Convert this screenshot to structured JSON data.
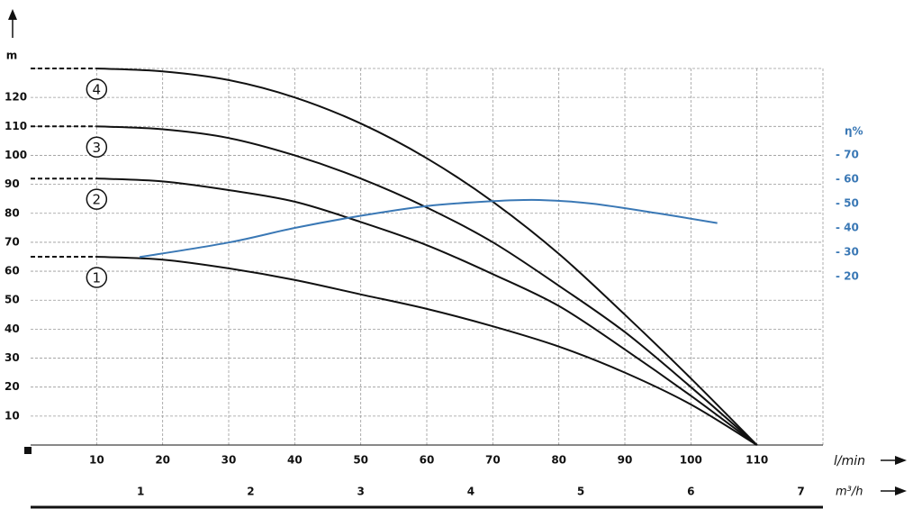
{
  "chart_data": {
    "type": "line",
    "ylabel": "m",
    "xlabel": "l/min",
    "x2label": "m³/h",
    "y2label": "η%",
    "xlim": [
      0,
      120
    ],
    "xticks": [
      10,
      20,
      30,
      40,
      50,
      60,
      70,
      80,
      90,
      100,
      110
    ],
    "x2lim": [
      0,
      7.2
    ],
    "x2ticks": [
      1,
      2,
      3,
      4,
      5,
      6,
      7
    ],
    "ylim": [
      0,
      130
    ],
    "yticks": [
      10,
      20,
      30,
      40,
      50,
      60,
      70,
      80,
      90,
      100,
      110,
      120
    ],
    "y2lim": [
      20,
      70
    ],
    "y2ticks": [
      {
        "value": 20,
        "label": "- 20"
      },
      {
        "value": 30,
        "label": "- 30"
      },
      {
        "value": 40,
        "label": "- 40"
      },
      {
        "value": 50,
        "label": "- 50"
      },
      {
        "value": 60,
        "label": "- 60"
      },
      {
        "value": 70,
        "label": "- 70"
      }
    ],
    "grid": true,
    "x": [
      0,
      10,
      20,
      30,
      40,
      50,
      60,
      70,
      80,
      90,
      100,
      110
    ],
    "series": [
      {
        "name": "1",
        "color": "#111111",
        "values": [
          65,
          65,
          64,
          61,
          57,
          52,
          47,
          41,
          34,
          25,
          14,
          0
        ]
      },
      {
        "name": "2",
        "color": "#111111",
        "values": [
          92,
          92,
          91,
          88,
          84,
          77,
          69,
          59,
          48,
          33,
          17,
          0
        ]
      },
      {
        "name": "3",
        "color": "#111111",
        "values": [
          110,
          110,
          109,
          106,
          100,
          92,
          82,
          70,
          55,
          39,
          20,
          0
        ]
      },
      {
        "name": "4",
        "color": "#111111",
        "values": [
          130,
          130,
          129,
          126,
          120,
          111,
          99,
          84,
          66,
          45,
          23,
          0
        ]
      },
      {
        "color": "#3a78b5",
        "axis": "y2",
        "x": [
          16.5,
          30,
          40,
          50,
          60,
          70,
          77,
          85,
          95,
          104
        ],
        "values": [
          28,
          34,
          40,
          45,
          49,
          51,
          51.5,
          50,
          46,
          42
        ]
      }
    ]
  }
}
